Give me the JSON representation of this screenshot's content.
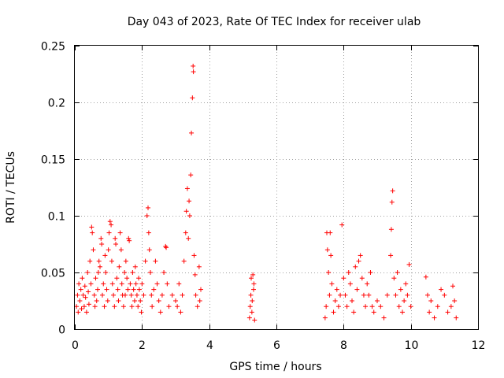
{
  "chart_data": {
    "type": "scatter",
    "title": "Day 043 of 2023, Rate Of TEC Index for receiver ulab",
    "xlabel": "GPS time / hours",
    "ylabel": "ROTI / TECUs",
    "xlim": [
      0,
      12
    ],
    "ylim": [
      0,
      0.25
    ],
    "xticks": [
      0,
      2,
      4,
      6,
      8,
      10,
      12
    ],
    "xtick_labels": [
      "0",
      "2",
      "4",
      "6",
      "8",
      "10",
      "12"
    ],
    "yticks": [
      0,
      0.05,
      0.1,
      0.15,
      0.2,
      0.25
    ],
    "ytick_labels": [
      "0",
      "0.05",
      "0.1",
      "0.15",
      "0.2",
      "0.25"
    ],
    "grid": true,
    "marker": "+",
    "color": "#ff0000",
    "series": [
      {
        "name": "ROTI",
        "points": [
          [
            0.05,
            0.02
          ],
          [
            0.08,
            0.03
          ],
          [
            0.1,
            0.015
          ],
          [
            0.12,
            0.04
          ],
          [
            0.15,
            0.025
          ],
          [
            0.18,
            0.035
          ],
          [
            0.2,
            0.018
          ],
          [
            0.22,
            0.045
          ],
          [
            0.25,
            0.03
          ],
          [
            0.28,
            0.02
          ],
          [
            0.3,
            0.038
          ],
          [
            0.32,
            0.028
          ],
          [
            0.35,
            0.015
          ],
          [
            0.38,
            0.05
          ],
          [
            0.4,
            0.033
          ],
          [
            0.42,
            0.022
          ],
          [
            0.45,
            0.06
          ],
          [
            0.48,
            0.04
          ],
          [
            0.5,
            0.09
          ],
          [
            0.52,
            0.085
          ],
          [
            0.55,
            0.07
          ],
          [
            0.58,
            0.03
          ],
          [
            0.6,
            0.02
          ],
          [
            0.62,
            0.045
          ],
          [
            0.65,
            0.025
          ],
          [
            0.68,
            0.035
          ],
          [
            0.7,
            0.05
          ],
          [
            0.72,
            0.06
          ],
          [
            0.75,
            0.055
          ],
          [
            0.78,
            0.08
          ],
          [
            0.8,
            0.075
          ],
          [
            0.82,
            0.03
          ],
          [
            0.85,
            0.04
          ],
          [
            0.88,
            0.02
          ],
          [
            0.9,
            0.065
          ],
          [
            0.92,
            0.05
          ],
          [
            0.95,
            0.035
          ],
          [
            0.98,
            0.025
          ],
          [
            1.0,
            0.07
          ],
          [
            1.02,
            0.085
          ],
          [
            1.05,
            0.095
          ],
          [
            1.08,
            0.092
          ],
          [
            1.1,
            0.06
          ],
          [
            1.12,
            0.04
          ],
          [
            1.15,
            0.03
          ],
          [
            1.18,
            0.02
          ],
          [
            1.2,
            0.08
          ],
          [
            1.22,
            0.075
          ],
          [
            1.25,
            0.045
          ],
          [
            1.28,
            0.035
          ],
          [
            1.3,
            0.025
          ],
          [
            1.32,
            0.055
          ],
          [
            1.35,
            0.085
          ],
          [
            1.38,
            0.07
          ],
          [
            1.4,
            0.04
          ],
          [
            1.42,
            0.03
          ],
          [
            1.45,
            0.02
          ],
          [
            1.48,
            0.05
          ],
          [
            1.5,
            0.03
          ],
          [
            1.52,
            0.06
          ],
          [
            1.55,
            0.045
          ],
          [
            1.58,
            0.035
          ],
          [
            1.6,
            0.08
          ],
          [
            1.62,
            0.078
          ],
          [
            1.65,
            0.04
          ],
          [
            1.68,
            0.03
          ],
          [
            1.7,
            0.02
          ],
          [
            1.72,
            0.05
          ],
          [
            1.75,
            0.035
          ],
          [
            1.78,
            0.025
          ],
          [
            1.8,
            0.055
          ],
          [
            1.82,
            0.04
          ],
          [
            1.85,
            0.03
          ],
          [
            1.88,
            0.02
          ],
          [
            1.9,
            0.045
          ],
          [
            1.92,
            0.035
          ],
          [
            1.95,
            0.025
          ],
          [
            1.98,
            0.015
          ],
          [
            2.0,
            0.04
          ],
          [
            2.05,
            0.03
          ],
          [
            2.1,
            0.06
          ],
          [
            2.15,
            0.1
          ],
          [
            2.18,
            0.107
          ],
          [
            2.2,
            0.085
          ],
          [
            2.22,
            0.07
          ],
          [
            2.25,
            0.05
          ],
          [
            2.28,
            0.03
          ],
          [
            2.3,
            0.02
          ],
          [
            2.35,
            0.035
          ],
          [
            2.4,
            0.06
          ],
          [
            2.45,
            0.04
          ],
          [
            2.5,
            0.025
          ],
          [
            2.55,
            0.015
          ],
          [
            2.6,
            0.03
          ],
          [
            2.65,
            0.05
          ],
          [
            2.7,
            0.073
          ],
          [
            2.72,
            0.072
          ],
          [
            2.75,
            0.04
          ],
          [
            2.8,
            0.02
          ],
          [
            2.9,
            0.03
          ],
          [
            3.0,
            0.025
          ],
          [
            3.05,
            0.02
          ],
          [
            3.1,
            0.04
          ],
          [
            3.15,
            0.015
          ],
          [
            3.2,
            0.03
          ],
          [
            3.25,
            0.06
          ],
          [
            3.3,
            0.085
          ],
          [
            3.32,
            0.104
          ],
          [
            3.35,
            0.124
          ],
          [
            3.38,
            0.08
          ],
          [
            3.4,
            0.113
          ],
          [
            3.42,
            0.1
          ],
          [
            3.45,
            0.136
          ],
          [
            3.47,
            0.173
          ],
          [
            3.5,
            0.204
          ],
          [
            3.52,
            0.232
          ],
          [
            3.53,
            0.227
          ],
          [
            3.55,
            0.065
          ],
          [
            3.58,
            0.048
          ],
          [
            3.6,
            0.03
          ],
          [
            3.65,
            0.02
          ],
          [
            3.7,
            0.055
          ],
          [
            3.72,
            0.025
          ],
          [
            3.75,
            0.035
          ],
          [
            5.2,
            0.01
          ],
          [
            5.22,
            0.02
          ],
          [
            5.24,
            0.03
          ],
          [
            5.25,
            0.045
          ],
          [
            5.27,
            0.015
          ],
          [
            5.28,
            0.025
          ],
          [
            5.3,
            0.048
          ],
          [
            5.32,
            0.035
          ],
          [
            5.33,
            0.04
          ],
          [
            5.35,
            0.008
          ],
          [
            7.45,
            0.01
          ],
          [
            7.48,
            0.02
          ],
          [
            7.5,
            0.085
          ],
          [
            7.52,
            0.07
          ],
          [
            7.55,
            0.05
          ],
          [
            7.58,
            0.03
          ],
          [
            7.6,
            0.085
          ],
          [
            7.62,
            0.065
          ],
          [
            7.65,
            0.04
          ],
          [
            7.7,
            0.015
          ],
          [
            7.75,
            0.025
          ],
          [
            7.8,
            0.035
          ],
          [
            7.85,
            0.02
          ],
          [
            7.9,
            0.03
          ],
          [
            7.95,
            0.092
          ],
          [
            8.0,
            0.045
          ],
          [
            8.05,
            0.03
          ],
          [
            8.1,
            0.02
          ],
          [
            8.15,
            0.05
          ],
          [
            8.2,
            0.04
          ],
          [
            8.25,
            0.025
          ],
          [
            8.3,
            0.015
          ],
          [
            8.35,
            0.055
          ],
          [
            8.4,
            0.035
          ],
          [
            8.45,
            0.06
          ],
          [
            8.5,
            0.065
          ],
          [
            8.55,
            0.045
          ],
          [
            8.6,
            0.03
          ],
          [
            8.65,
            0.02
          ],
          [
            8.7,
            0.04
          ],
          [
            8.75,
            0.03
          ],
          [
            8.8,
            0.05
          ],
          [
            8.85,
            0.02
          ],
          [
            8.9,
            0.015
          ],
          [
            9.0,
            0.025
          ],
          [
            9.1,
            0.02
          ],
          [
            9.2,
            0.01
          ],
          [
            9.3,
            0.03
          ],
          [
            9.4,
            0.065
          ],
          [
            9.42,
            0.088
          ],
          [
            9.44,
            0.112
          ],
          [
            9.46,
            0.122
          ],
          [
            9.5,
            0.045
          ],
          [
            9.55,
            0.03
          ],
          [
            9.6,
            0.05
          ],
          [
            9.65,
            0.02
          ],
          [
            9.7,
            0.035
          ],
          [
            9.75,
            0.015
          ],
          [
            9.8,
            0.025
          ],
          [
            9.85,
            0.04
          ],
          [
            9.9,
            0.03
          ],
          [
            9.95,
            0.057
          ],
          [
            10.0,
            0.02
          ],
          [
            10.45,
            0.046
          ],
          [
            10.5,
            0.03
          ],
          [
            10.55,
            0.015
          ],
          [
            10.6,
            0.025
          ],
          [
            10.7,
            0.01
          ],
          [
            10.8,
            0.02
          ],
          [
            10.9,
            0.035
          ],
          [
            11.0,
            0.03
          ],
          [
            11.1,
            0.015
          ],
          [
            11.2,
            0.02
          ],
          [
            11.25,
            0.038
          ],
          [
            11.3,
            0.025
          ],
          [
            11.35,
            0.01
          ]
        ]
      }
    ]
  }
}
